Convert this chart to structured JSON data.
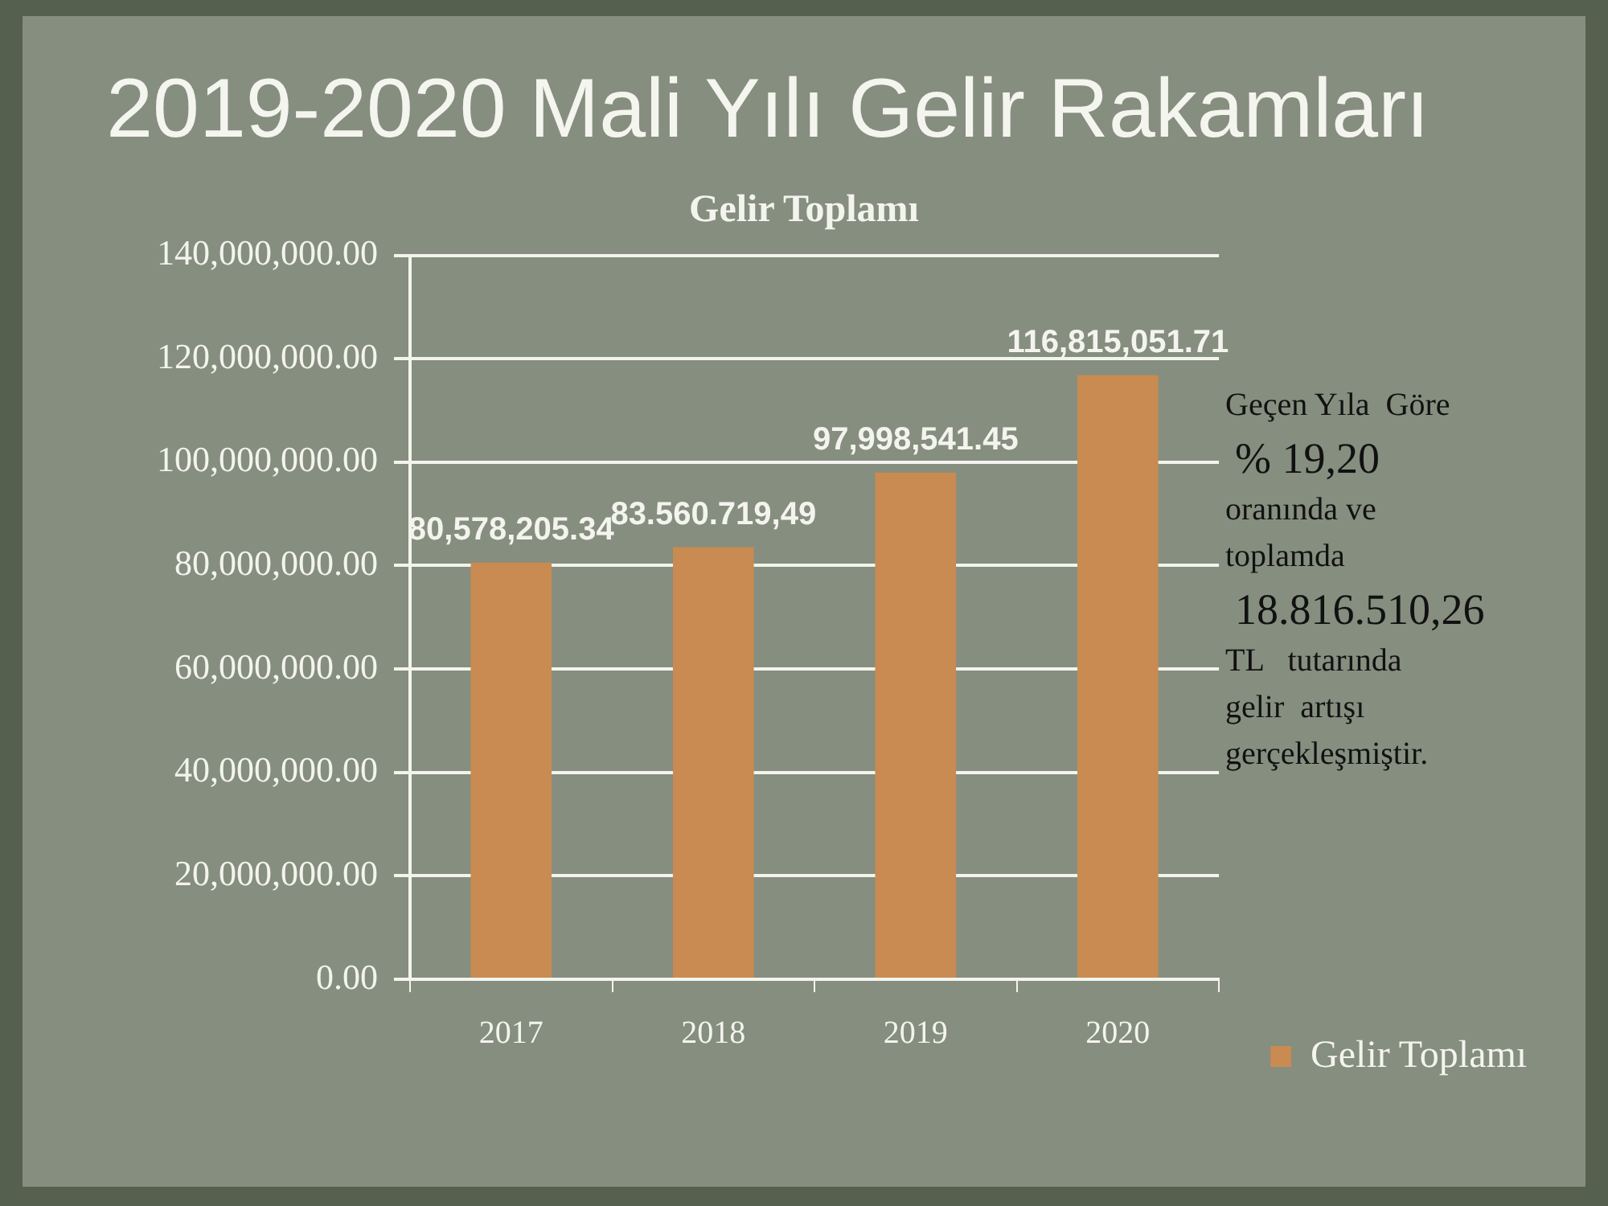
{
  "chart_data": {
    "type": "bar",
    "title": "2019-2020 Mali Yılı Gelir Rakamları",
    "subtitle": "Gelir Toplamı",
    "categories": [
      "2017",
      "2018",
      "2019",
      "2020"
    ],
    "series": [
      {
        "name": "Gelir Toplamı",
        "color": "#c98b51",
        "values": [
          80578205.34,
          83560719.49,
          97998541.45,
          116815051.71
        ],
        "value_labels": [
          "80,578,205.34",
          "83.560.719,49",
          "97,998,541.45",
          "116,815,051.71"
        ]
      }
    ],
    "ylim": [
      0,
      140000000
    ],
    "yticks": [
      {
        "value": 0,
        "label": "0.00"
      },
      {
        "value": 20000000,
        "label": "20,000,000.00"
      },
      {
        "value": 40000000,
        "label": "40,000,000.00"
      },
      {
        "value": 60000000,
        "label": "60,000,000.00"
      },
      {
        "value": 80000000,
        "label": "80,000,000.00"
      },
      {
        "value": 100000000,
        "label": "100,000,000.00"
      },
      {
        "value": 120000000,
        "label": "120,000,000.00"
      },
      {
        "value": 140000000,
        "label": "140,000,000.00"
      }
    ],
    "grid": "y",
    "legend": "bottom right",
    "annotations": [
      "Geçen Yıla  Göre",
      "% 19,20",
      "oranında ve toplamda",
      "18.816.510,26",
      "TL   tutarında gelir  artışı gerçekleşmiştir."
    ]
  }
}
